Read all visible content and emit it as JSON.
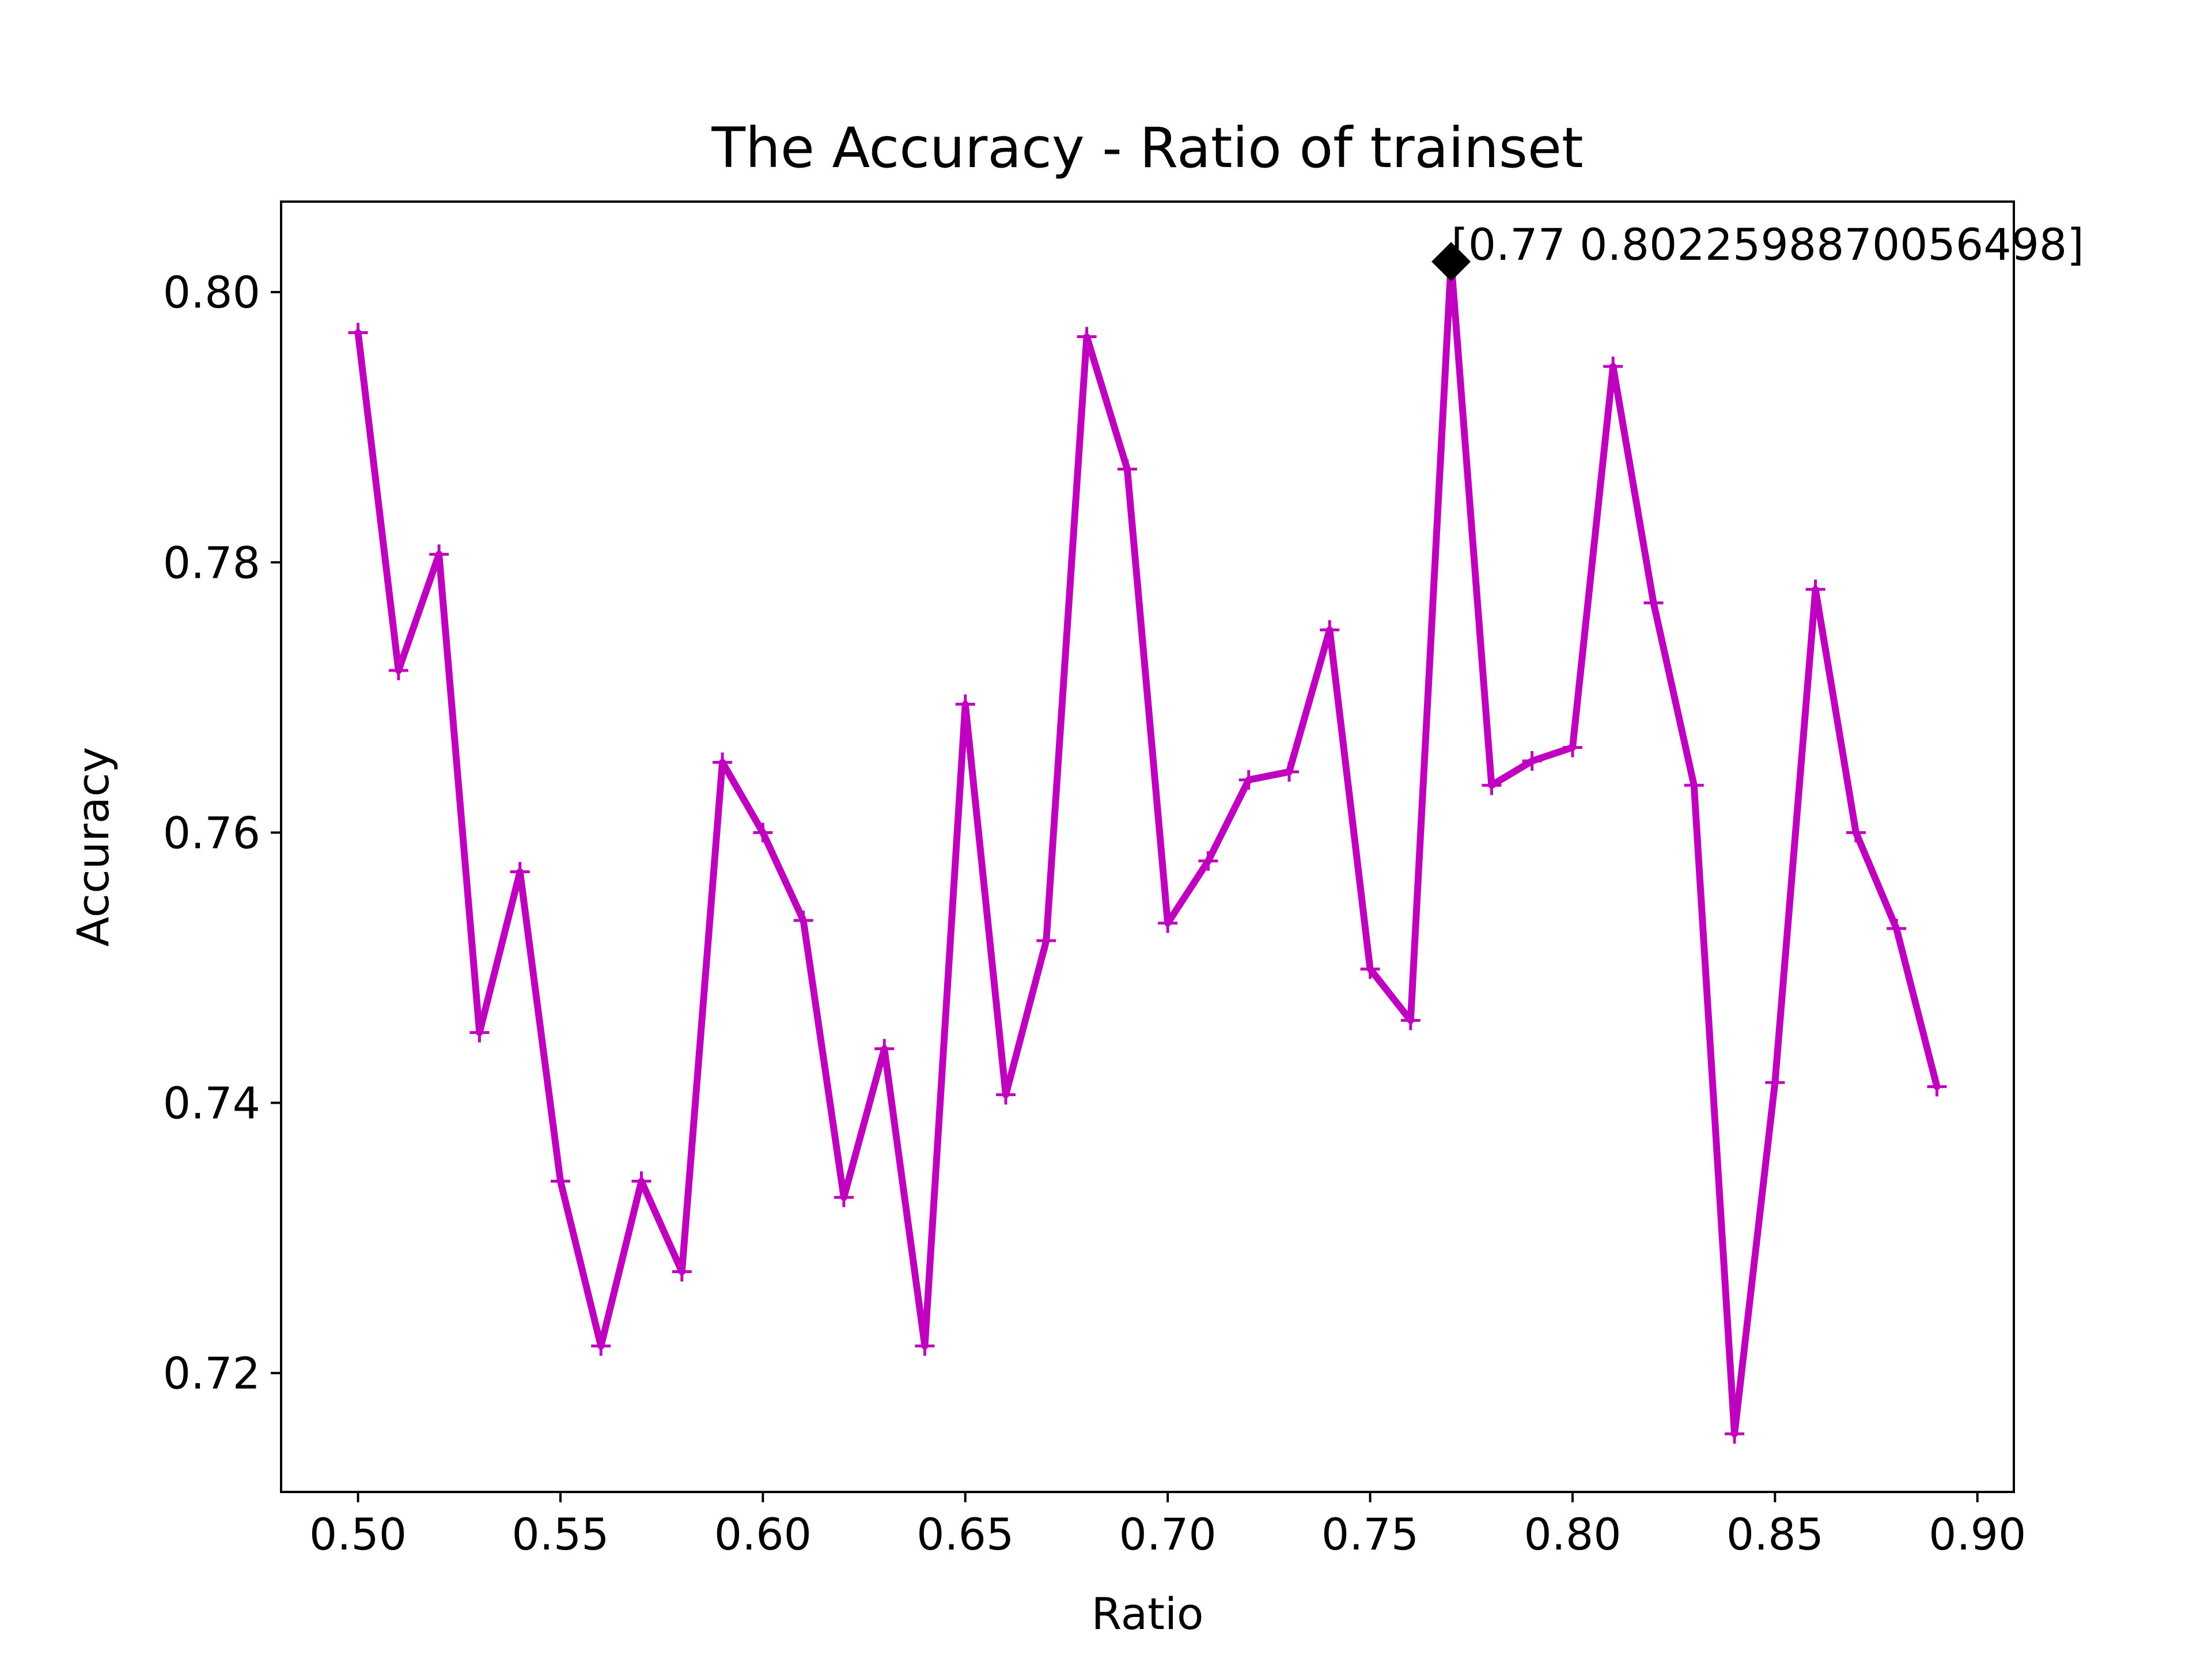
{
  "chart_data": {
    "type": "line",
    "title": "The Accuracy - Ratio of trainset",
    "xlabel": "Ratio",
    "ylabel": "Accuracy",
    "xlim": [
      0.481,
      0.909
    ],
    "ylim": [
      0.7112,
      0.8067
    ],
    "xticks": [
      0.5,
      0.55,
      0.6,
      0.65,
      0.7,
      0.75,
      0.8,
      0.85,
      0.9
    ],
    "xtick_labels": [
      "0.50",
      "0.55",
      "0.60",
      "0.65",
      "0.70",
      "0.75",
      "0.80",
      "0.85",
      "0.90"
    ],
    "yticks": [
      0.72,
      0.74,
      0.76,
      0.78,
      0.8
    ],
    "ytick_labels": [
      "0.72",
      "0.74",
      "0.76",
      "0.78",
      "0.80"
    ],
    "grid": false,
    "series": [
      {
        "color": "#bf00bf",
        "marker": "plus",
        "x": [
          0.5,
          0.51,
          0.52,
          0.53,
          0.54,
          0.55,
          0.56,
          0.57,
          0.58,
          0.59,
          0.6,
          0.61,
          0.62,
          0.63,
          0.64,
          0.65,
          0.66,
          0.67,
          0.68,
          0.69,
          0.7,
          0.71,
          0.72,
          0.73,
          0.74,
          0.75,
          0.76,
          0.77,
          0.78,
          0.79,
          0.8,
          0.81,
          0.82,
          0.83,
          0.84,
          0.85,
          0.86,
          0.87,
          0.88,
          0.89
        ],
        "y": [
          0.797,
          0.772,
          0.7806,
          0.7452,
          0.7571,
          0.7342,
          0.722,
          0.7342,
          0.7275,
          0.7652,
          0.76,
          0.7535,
          0.733,
          0.744,
          0.722,
          0.7695,
          0.7406,
          0.752,
          0.7967,
          0.7869,
          0.7533,
          0.7579,
          0.7639,
          0.7645,
          0.775,
          0.7499,
          0.7461,
          0.8023,
          0.7635,
          0.7653,
          0.7663,
          0.7945,
          0.777,
          0.7635,
          0.7155,
          0.7415,
          0.778,
          0.76,
          0.7529,
          0.7412
        ]
      }
    ],
    "highlight": {
      "x": 0.77,
      "y": 0.8022598870056498,
      "marker": "diamond",
      "color": "#000000",
      "label": "[0.77 0.8022598870056498]"
    }
  }
}
